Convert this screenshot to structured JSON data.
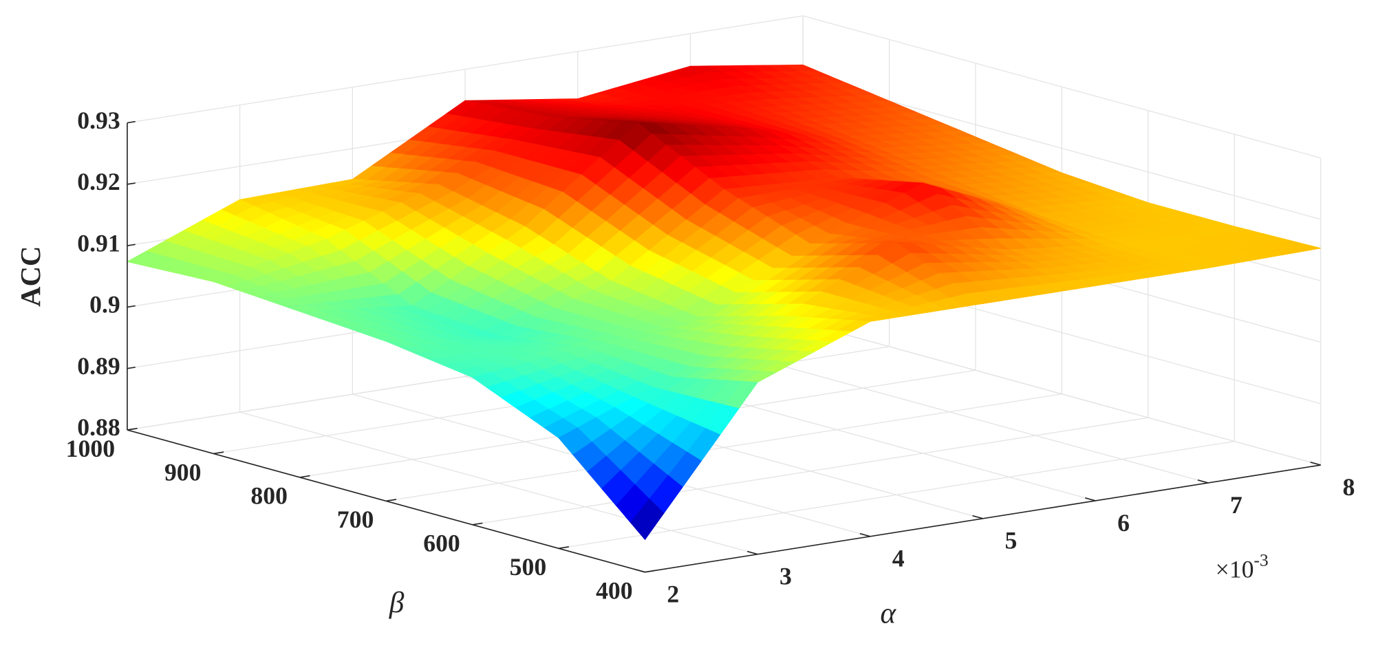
{
  "chart_data": {
    "type": "surface",
    "xlabel": "α",
    "ylabel": "β",
    "zlabel": "ACC",
    "x_multiplier": {
      "base": "×10",
      "exponent": "-3"
    },
    "x": [
      2,
      3,
      4,
      5,
      6,
      7,
      8
    ],
    "y": [
      400,
      500,
      600,
      700,
      800,
      900,
      1000
    ],
    "z": [
      [
        0.8853,
        0.908,
        0.915,
        0.915,
        0.915,
        0.915,
        0.9153
      ],
      [
        0.898,
        0.905,
        0.912,
        0.921,
        0.917,
        0.915,
        0.915
      ],
      [
        0.904,
        0.906,
        0.908,
        0.917,
        0.924,
        0.916,
        0.915
      ],
      [
        0.906,
        0.904,
        0.91,
        0.922,
        0.921,
        0.918,
        0.916
      ],
      [
        0.907,
        0.905,
        0.915,
        0.929,
        0.925,
        0.92,
        0.918
      ],
      [
        0.908,
        0.912,
        0.918,
        0.926,
        0.924,
        0.922,
        0.92
      ],
      [
        0.9074,
        0.9146,
        0.915,
        0.9249,
        0.9223,
        0.9247,
        0.922
      ]
    ],
    "xlim": [
      2,
      8
    ],
    "ylim": [
      400,
      1000
    ],
    "zlim": [
      0.88,
      0.93
    ],
    "xticks": [
      2,
      3,
      4,
      5,
      6,
      7,
      8
    ],
    "yticks": [
      400,
      500,
      600,
      700,
      800,
      900,
      1000
    ],
    "zticks": [
      0.88,
      0.89,
      0.9,
      0.91,
      0.92,
      0.93
    ],
    "colormap": "jet",
    "grid": true
  }
}
